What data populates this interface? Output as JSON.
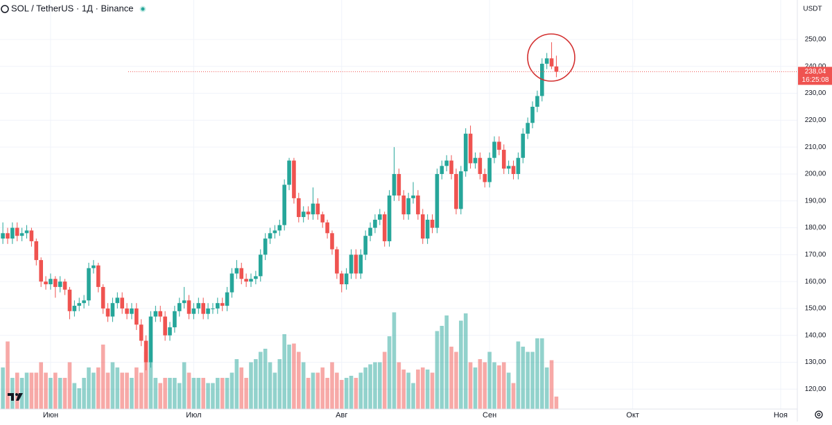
{
  "header": {
    "symbol": "SOL / TetherUS · 1Д · Binance",
    "currency": "USDT"
  },
  "chart_data": {
    "type": "candlestick",
    "ylim": [
      112.6,
      264.7
    ],
    "yticks": [
      {
        "value": 120,
        "label": "120,00"
      },
      {
        "value": 130,
        "label": "130,00"
      },
      {
        "value": 140,
        "label": "140,00"
      },
      {
        "value": 150,
        "label": "150,00"
      },
      {
        "value": 160,
        "label": "160,00"
      },
      {
        "value": 170,
        "label": "170,00"
      },
      {
        "value": 180,
        "label": "180,00"
      },
      {
        "value": 190,
        "label": "190,00"
      },
      {
        "value": 200,
        "label": "200,00"
      },
      {
        "value": 210,
        "label": "210,00"
      },
      {
        "value": 220,
        "label": "220,00"
      },
      {
        "value": 230,
        "label": "230,00"
      },
      {
        "value": 240,
        "label": "240,00"
      },
      {
        "value": 250,
        "label": "250,00"
      }
    ],
    "xlim": [
      -0.6,
      166.5
    ],
    "xticks": [
      {
        "value": 10,
        "label": "Июн"
      },
      {
        "value": 40,
        "label": "Июл"
      },
      {
        "value": 71,
        "label": "Авг"
      },
      {
        "value": 102,
        "label": "Сен"
      },
      {
        "value": 132,
        "label": "Окт"
      },
      {
        "value": 163,
        "label": "Ноя"
      }
    ],
    "up_color": "#26a69a",
    "down_color": "#ef5350",
    "volume_lim": [
      0,
      100
    ],
    "last_price": {
      "value": 238.04,
      "label": "238,04"
    },
    "countdown": "16:25:08",
    "ohlc": [
      [
        176,
        182,
        174,
        178
      ],
      [
        178,
        180,
        174,
        176
      ],
      [
        176,
        182,
        174,
        180
      ],
      [
        180,
        182,
        175,
        177
      ],
      [
        177,
        180,
        175,
        178
      ],
      [
        178,
        181,
        176,
        179
      ],
      [
        179,
        180,
        173,
        175
      ],
      [
        175,
        176,
        166,
        168
      ],
      [
        168,
        169,
        158,
        160
      ],
      [
        160,
        162,
        157,
        159
      ],
      [
        159,
        163,
        157,
        161
      ],
      [
        161,
        162,
        154,
        158
      ],
      [
        158,
        162,
        156,
        160
      ],
      [
        160,
        161,
        155,
        157
      ],
      [
        157,
        158,
        146,
        149
      ],
      [
        149,
        153,
        147,
        151
      ],
      [
        151,
        154,
        149,
        152
      ],
      [
        152,
        155,
        150,
        153
      ],
      [
        153,
        167,
        151,
        165
      ],
      [
        165,
        168,
        163,
        166
      ],
      [
        166,
        167,
        156,
        158
      ],
      [
        158,
        159,
        148,
        150
      ],
      [
        150,
        152,
        145,
        147
      ],
      [
        147,
        154,
        145,
        152
      ],
      [
        152,
        156,
        150,
        154
      ],
      [
        154,
        156,
        148,
        150
      ],
      [
        150,
        152,
        146,
        148
      ],
      [
        148,
        152,
        146,
        150
      ],
      [
        150,
        152,
        142,
        144
      ],
      [
        144,
        146,
        136,
        138
      ],
      [
        138,
        140,
        127,
        130
      ],
      [
        130,
        149,
        128,
        147
      ],
      [
        147,
        151,
        145,
        149
      ],
      [
        149,
        151,
        145,
        147
      ],
      [
        147,
        149,
        138,
        140
      ],
      [
        140,
        145,
        138,
        143
      ],
      [
        143,
        151,
        141,
        149
      ],
      [
        149,
        154,
        147,
        152
      ],
      [
        152,
        158,
        150,
        153
      ],
      [
        153,
        155,
        146,
        148
      ],
      [
        148,
        152,
        146,
        150
      ],
      [
        150,
        154,
        148,
        152
      ],
      [
        152,
        154,
        146,
        148
      ],
      [
        148,
        152,
        146,
        150
      ],
      [
        150,
        152,
        148,
        150
      ],
      [
        150,
        154,
        148,
        152
      ],
      [
        152,
        154,
        149,
        151
      ],
      [
        151,
        158,
        149,
        156
      ],
      [
        156,
        165,
        154,
        163
      ],
      [
        163,
        168,
        161,
        165
      ],
      [
        165,
        167,
        159,
        161
      ],
      [
        161,
        163,
        158,
        160
      ],
      [
        160,
        163,
        158,
        161
      ],
      [
        161,
        164,
        159,
        162
      ],
      [
        162,
        172,
        160,
        170
      ],
      [
        170,
        178,
        168,
        176
      ],
      [
        176,
        180,
        174,
        178
      ],
      [
        178,
        181,
        176,
        179
      ],
      [
        179,
        183,
        177,
        181
      ],
      [
        181,
        198,
        179,
        196
      ],
      [
        196,
        206,
        194,
        205
      ],
      [
        205,
        206,
        189,
        191
      ],
      [
        191,
        193,
        182,
        184
      ],
      [
        184,
        188,
        182,
        186
      ],
      [
        186,
        188,
        183,
        185
      ],
      [
        185,
        195,
        183,
        189
      ],
      [
        189,
        191,
        183,
        185
      ],
      [
        185,
        186,
        180,
        182
      ],
      [
        182,
        183,
        176,
        178
      ],
      [
        178,
        179,
        170,
        172
      ],
      [
        172,
        173,
        161,
        163
      ],
      [
        163,
        164,
        156,
        159
      ],
      [
        159,
        165,
        157,
        163
      ],
      [
        163,
        172,
        161,
        170
      ],
      [
        170,
        172,
        161,
        163
      ],
      [
        163,
        172,
        161,
        170
      ],
      [
        170,
        179,
        168,
        177
      ],
      [
        177,
        182,
        175,
        180
      ],
      [
        180,
        185,
        178,
        183
      ],
      [
        183,
        187,
        181,
        185
      ],
      [
        185,
        186,
        173,
        175
      ],
      [
        175,
        194,
        173,
        192
      ],
      [
        192,
        210,
        190,
        200
      ],
      [
        200,
        202,
        190,
        192
      ],
      [
        192,
        194,
        183,
        185
      ],
      [
        185,
        193,
        183,
        191
      ],
      [
        191,
        197,
        189,
        192
      ],
      [
        192,
        194,
        183,
        185
      ],
      [
        185,
        187,
        174,
        176
      ],
      [
        176,
        185,
        174,
        183
      ],
      [
        183,
        185,
        178,
        180
      ],
      [
        180,
        202,
        178,
        200
      ],
      [
        200,
        205,
        198,
        203
      ],
      [
        203,
        207,
        201,
        205
      ],
      [
        205,
        207,
        198,
        200
      ],
      [
        200,
        202,
        185,
        187
      ],
      [
        187,
        203,
        185,
        201
      ],
      [
        201,
        217,
        199,
        215
      ],
      [
        215,
        218,
        202,
        204
      ],
      [
        204,
        208,
        202,
        206
      ],
      [
        206,
        208,
        198,
        200
      ],
      [
        200,
        202,
        195,
        197
      ],
      [
        197,
        208,
        195,
        206
      ],
      [
        206,
        214,
        204,
        212
      ],
      [
        212,
        214,
        207,
        209
      ],
      [
        209,
        211,
        200,
        202
      ],
      [
        202,
        205,
        200,
        203
      ],
      [
        203,
        205,
        198,
        200
      ],
      [
        200,
        208,
        198,
        206
      ],
      [
        206,
        217,
        204,
        215
      ],
      [
        215,
        221,
        213,
        219
      ],
      [
        219,
        227,
        217,
        225
      ],
      [
        225,
        231,
        223,
        229
      ],
      [
        229,
        243,
        227,
        241
      ],
      [
        241,
        245,
        239,
        243
      ],
      [
        243,
        249,
        239,
        240
      ],
      [
        240,
        244,
        236,
        238.04
      ]
    ],
    "volume": [
      40,
      65,
      30,
      35,
      30,
      35,
      35,
      35,
      45,
      35,
      30,
      35,
      30,
      30,
      45,
      25,
      20,
      30,
      40,
      35,
      40,
      62,
      35,
      45,
      40,
      35,
      35,
      30,
      40,
      35,
      55,
      45,
      30,
      25,
      30,
      30,
      30,
      25,
      45,
      35,
      30,
      30,
      30,
      25,
      25,
      30,
      30,
      30,
      35,
      48,
      40,
      30,
      45,
      48,
      55,
      58,
      45,
      35,
      48,
      72,
      62,
      63,
      55,
      45,
      30,
      35,
      35,
      40,
      30,
      45,
      35,
      28,
      30,
      32,
      30,
      35,
      40,
      43,
      45,
      45,
      55,
      70,
      93,
      45,
      38,
      35,
      25,
      38,
      40,
      38,
      35,
      75,
      80,
      90,
      60,
      55,
      85,
      92,
      45,
      40,
      48,
      45,
      55,
      45,
      42,
      45,
      35,
      25,
      65,
      60,
      55,
      55,
      68,
      68,
      40,
      47,
      12
    ]
  }
}
